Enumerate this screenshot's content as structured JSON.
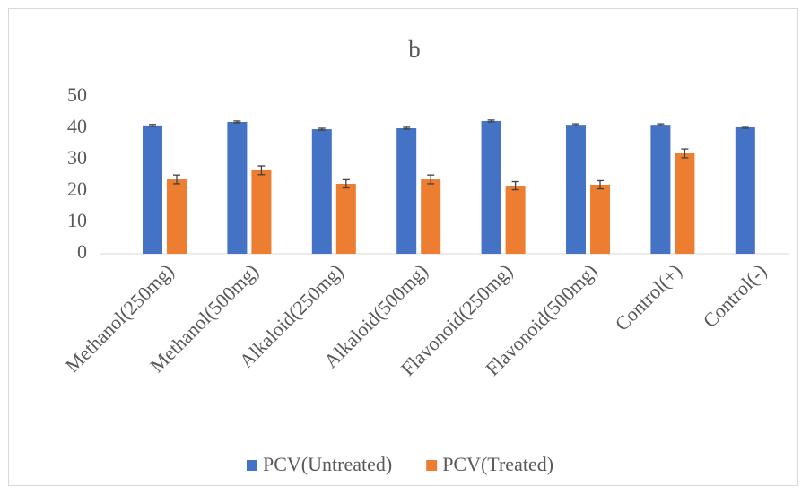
{
  "chart_data": {
    "type": "bar",
    "title": "b",
    "categories": [
      "Methanol(250mg)",
      "Methanol(500mg)",
      "Alkaloid(250mg)",
      "Alkaloid(500mg)",
      "Flavonoid(250mg)",
      "Flavonoid(500mg)",
      "Control(+)",
      "Control(-)"
    ],
    "series": [
      {
        "name": "PCV(Untreated)",
        "color": "#4472c4",
        "values": [
          40.9,
          42.0,
          39.7,
          40.0,
          42.3,
          41.1,
          41.1,
          40.3
        ],
        "errors": [
          0.3,
          0.3,
          0.3,
          0.3,
          0.3,
          0.3,
          0.3,
          0.3
        ]
      },
      {
        "name": "PCV(Treated)",
        "color": "#ed7d31",
        "values": [
          23.7,
          26.6,
          22.3,
          23.7,
          21.7,
          22.0,
          32.0,
          null
        ],
        "errors": [
          1.4,
          1.4,
          1.3,
          1.4,
          1.3,
          1.3,
          1.4,
          null
        ]
      }
    ],
    "ylim": [
      0,
      50
    ],
    "yticks": [
      0,
      10,
      20,
      30,
      40,
      50
    ],
    "grid": false,
    "legend": "bottom"
  }
}
